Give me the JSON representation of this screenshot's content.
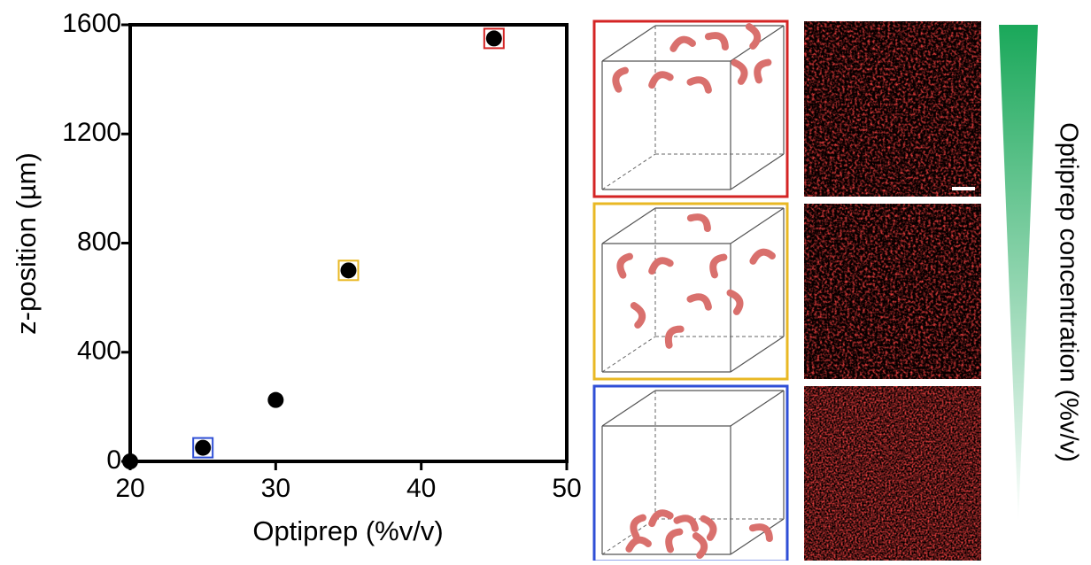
{
  "chart_data": {
    "type": "scatter",
    "x_label": "Optiprep (%v/v)",
    "y_label": "z-position (µm)",
    "x": [
      20,
      25,
      30,
      35,
      45
    ],
    "values": [
      0,
      50,
      225,
      700,
      1550
    ],
    "color": "#000000",
    "highlight_colors": [
      null,
      "#2f4fd6",
      null,
      "#e9b824",
      "#d42424"
    ],
    "xlim": [
      20,
      50
    ],
    "xticks": [
      20,
      30,
      40,
      50
    ],
    "ylim": [
      0,
      1600
    ],
    "yticks": [
      0,
      400,
      800,
      1200,
      1600
    ],
    "gradient_label": "Optiprep concentration (%v/v)",
    "gradient_color": "#1aa85a"
  }
}
